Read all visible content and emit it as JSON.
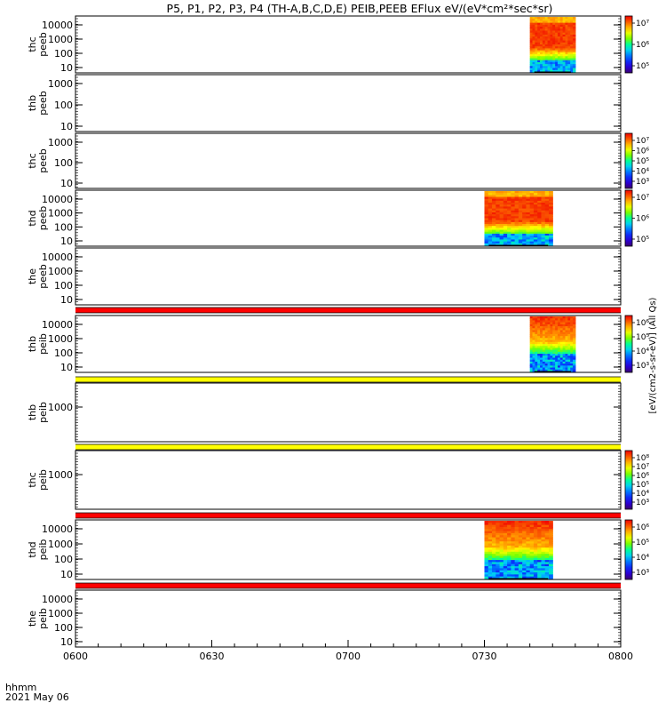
{
  "title": "P5, P1, P2, P3, P4 (TH-A,B,C,D,E) PEIB,PEEB EFlux eV/(eV*cm²*sec*sr)",
  "footer": {
    "line1": "hhmm",
    "line2": "2021 May 06"
  },
  "time_ticks": [
    "0600",
    "0630",
    "0700",
    "0730",
    "0800"
  ],
  "colorbar_label": "[eV/(cm2-s-sr-eV)] (All Qs)",
  "chart_data": [
    {
      "type": "heatmap",
      "label": [
        "thc",
        "peeb"
      ],
      "probe": "thc",
      "instrument": "peeb",
      "y_ticks": [
        "10000",
        "1000",
        "100",
        "10"
      ],
      "ylog": true,
      "data_window": [
        "0740",
        "0750"
      ],
      "colorbar_ticks": [
        "10^7",
        "10^6",
        "10^5"
      ]
    },
    {
      "type": "heatmap",
      "label": [
        "thb",
        "peeb"
      ],
      "probe": "thb",
      "instrument": "peeb",
      "y_ticks": [
        "1000",
        "100",
        "10"
      ],
      "ylog": true,
      "data_window": null,
      "colorbar_ticks": []
    },
    {
      "type": "heatmap",
      "label": [
        "thc",
        "peeb"
      ],
      "probe": "thc",
      "instrument": "peeb",
      "y_ticks": [
        "1000",
        "100",
        "10"
      ],
      "ylog": true,
      "data_window": null,
      "colorbar_ticks": [
        "10^7",
        "10^6",
        "10^5",
        "10^4",
        "10^3"
      ]
    },
    {
      "type": "heatmap",
      "label": [
        "thd",
        "peeb"
      ],
      "probe": "thd",
      "instrument": "peeb",
      "y_ticks": [
        "10000",
        "1000",
        "100",
        "10"
      ],
      "ylog": true,
      "data_window": [
        "0730",
        "0745"
      ],
      "colorbar_ticks": [
        "10^7",
        "10^6",
        "10^5"
      ]
    },
    {
      "type": "heatmap",
      "label": [
        "the",
        "peeb"
      ],
      "probe": "the",
      "instrument": "peeb",
      "y_ticks": [
        "10000",
        "1000",
        "100",
        "10"
      ],
      "ylog": true,
      "data_window": null,
      "colorbar_ticks": []
    },
    {
      "type": "heatmap",
      "label": [
        "thb",
        "peib"
      ],
      "probe": "thb",
      "instrument": "peib",
      "y_ticks": [
        "10000",
        "1000",
        "100",
        "10"
      ],
      "ylog": true,
      "data_window": [
        "0740",
        "0750"
      ],
      "colorbar_ticks": [
        "10^6",
        "10^5",
        "10^4",
        "10^3"
      ]
    },
    {
      "type": "heatmap",
      "label": [
        "thb",
        "peib"
      ],
      "probe": "thb",
      "instrument": "peib",
      "y_ticks": [
        "1000"
      ],
      "ylog": true,
      "data_window": null,
      "colorbar_ticks": []
    },
    {
      "type": "heatmap",
      "label": [
        "thc",
        "peib"
      ],
      "probe": "thc",
      "instrument": "peib",
      "y_ticks": [
        "1000"
      ],
      "ylog": true,
      "data_window": null,
      "colorbar_ticks": [
        "10^8",
        "10^7",
        "10^6",
        "10^5",
        "10^4",
        "10^3"
      ]
    },
    {
      "type": "heatmap",
      "label": [
        "thd",
        "peib"
      ],
      "probe": "thd",
      "instrument": "peib",
      "y_ticks": [
        "10000",
        "1000",
        "100",
        "10"
      ],
      "ylog": true,
      "data_window": [
        "0730",
        "0745"
      ],
      "colorbar_ticks": [
        "10^6",
        "10^5",
        "10^4",
        "10^3"
      ]
    },
    {
      "type": "heatmap",
      "label": [
        "the",
        "peib"
      ],
      "probe": "the",
      "instrument": "peib",
      "y_ticks": [
        "10000",
        "1000",
        "100",
        "10"
      ],
      "ylog": true,
      "data_window": null,
      "colorbar_ticks": []
    }
  ]
}
